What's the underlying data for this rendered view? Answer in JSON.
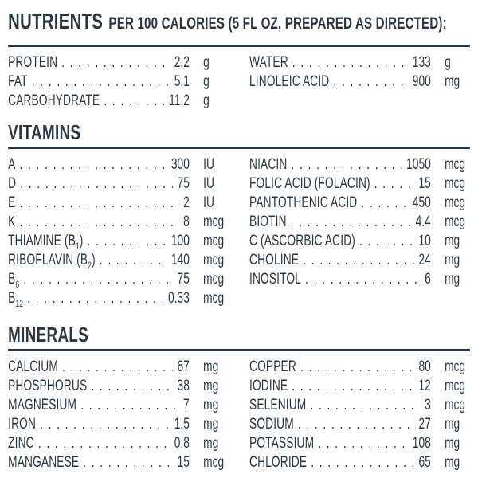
{
  "ink_color": "#273745",
  "header": {
    "title": "NUTRIENTS",
    "subtitle": "PER 100 CALORIES (5 FL OZ, PREPARED AS DIRECTED):"
  },
  "nutrients": {
    "left": [
      {
        "label": "PROTEIN",
        "value": "2.2",
        "unit": "g"
      },
      {
        "label": "FAT",
        "value": "5.1",
        "unit": "g"
      },
      {
        "label": "CARBOHYDRATE",
        "value": "11.2",
        "unit": "g"
      }
    ],
    "right": [
      {
        "label": "WATER",
        "value": "133",
        "unit": "g"
      },
      {
        "label": "LINOLEIC ACID",
        "value": "900",
        "unit": "mg"
      }
    ]
  },
  "vitamins": {
    "title": "VITAMINS",
    "left": [
      {
        "label": "A",
        "value": "300",
        "unit": "IU"
      },
      {
        "label": "D",
        "value": "75",
        "unit": "IU"
      },
      {
        "label": "E",
        "value": "2",
        "unit": "IU"
      },
      {
        "label": "K",
        "value": "8",
        "unit": "mcg"
      },
      {
        "label": "THIAMINE (B_{1})",
        "value": "100",
        "unit": "mcg"
      },
      {
        "label": "RIBOFLAVIN (B_{2})",
        "value": "140",
        "unit": "mcg"
      },
      {
        "label": "B_{6}",
        "value": "75",
        "unit": "mcg"
      },
      {
        "label": "B_{12}",
        "value": "0.33",
        "unit": "mcg"
      }
    ],
    "right": [
      {
        "label": "NIACIN",
        "value": "1050",
        "unit": "mcg"
      },
      {
        "label": "FOLIC ACID (FOLACIN)",
        "value": "15",
        "unit": "mcg"
      },
      {
        "label": "PANTOTHENIC ACID",
        "value": "450",
        "unit": "mcg"
      },
      {
        "label": "BIOTIN",
        "value": "4.4",
        "unit": "mcg"
      },
      {
        "label": "C (ASCORBIC ACID)",
        "value": "10",
        "unit": "mg"
      },
      {
        "label": "CHOLINE",
        "value": "24",
        "unit": "mg"
      },
      {
        "label": "INOSITOL",
        "value": "6",
        "unit": "mg"
      }
    ]
  },
  "minerals": {
    "title": "MINERALS",
    "left": [
      {
        "label": "CALCIUM",
        "value": "67",
        "unit": "mg"
      },
      {
        "label": "PHOSPHORUS",
        "value": "38",
        "unit": "mg"
      },
      {
        "label": "MAGNESIUM",
        "value": "7",
        "unit": "mg"
      },
      {
        "label": "IRON",
        "value": "1.5",
        "unit": "mg"
      },
      {
        "label": "ZINC",
        "value": "0.8",
        "unit": "mg"
      },
      {
        "label": "MANGANESE",
        "value": "15",
        "unit": "mcg"
      }
    ],
    "right": [
      {
        "label": "COPPER",
        "value": "80",
        "unit": "mcg"
      },
      {
        "label": "IODINE",
        "value": "12",
        "unit": "mcg"
      },
      {
        "label": "SELENIUM",
        "value": "3",
        "unit": "mcg"
      },
      {
        "label": "SODIUM",
        "value": "27",
        "unit": "mg"
      },
      {
        "label": "POTASSIUM",
        "value": "108",
        "unit": "mg"
      },
      {
        "label": "CHLORIDE",
        "value": "65",
        "unit": "mg"
      }
    ]
  }
}
